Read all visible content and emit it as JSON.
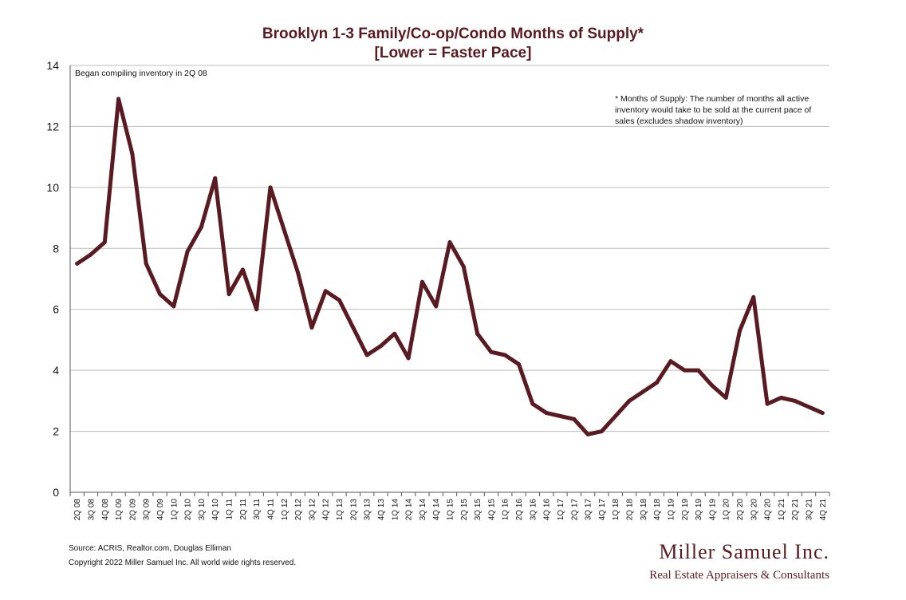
{
  "chart_data": {
    "type": "line",
    "title": "Brooklyn 1-3 Family/Co-op/Condo Months of Supply*",
    "subtitle": "[Lower = Faster Pace]",
    "xlabel": "",
    "ylabel": "",
    "ylim": [
      0,
      14
    ],
    "yticks": [
      "0",
      "2",
      "4",
      "6",
      "8",
      "10",
      "12",
      "14"
    ],
    "grid": true,
    "line_color": "#5a1a22",
    "categories": [
      "2Q 08",
      "3Q 08",
      "4Q 08",
      "1Q 09",
      "2Q 09",
      "3Q 09",
      "4Q 09",
      "1Q 10",
      "2Q 10",
      "3Q 10",
      "4Q 10",
      "1Q 11",
      "2Q 11",
      "3Q 11",
      "4Q 11",
      "1Q 12",
      "2Q 12",
      "3Q 12",
      "4Q 12",
      "1Q 13",
      "2Q 13",
      "3Q 13",
      "4Q 13",
      "1Q 14",
      "2Q 14",
      "3Q 14",
      "4Q 14",
      "1Q 15",
      "2Q 15",
      "3Q 15",
      "4Q 15",
      "1Q 16",
      "2Q 16",
      "3Q 16",
      "4Q 16",
      "1Q 17",
      "2Q 17",
      "3Q 17",
      "4Q 17",
      "1Q 18",
      "2Q 18",
      "3Q 18",
      "4Q 18",
      "1Q 19",
      "2Q 19",
      "3Q 19",
      "4Q 19",
      "1Q 20",
      "2Q 20",
      "3Q 20",
      "4Q 20",
      "1Q 21",
      "2Q 21",
      "3Q 21",
      "4Q 21"
    ],
    "series": [
      {
        "values": [
          7.5,
          7.8,
          8.2,
          12.9,
          11.1,
          7.5,
          6.5,
          6.1,
          7.9,
          8.7,
          10.3,
          6.5,
          7.3,
          6.0,
          10.0,
          8.6,
          7.2,
          5.4,
          6.6,
          6.3,
          5.4,
          4.5,
          4.8,
          5.2,
          4.4,
          6.9,
          6.1,
          8.2,
          7.4,
          5.2,
          4.6,
          4.5,
          4.2,
          2.9,
          2.6,
          2.5,
          2.4,
          1.9,
          2.0,
          2.5,
          3.0,
          3.3,
          3.6,
          4.3,
          4.0,
          4.0,
          3.5,
          3.1,
          5.3,
          6.4,
          2.9,
          3.1,
          3.0,
          2.8,
          2.6
        ]
      }
    ],
    "annotations": {
      "top_left": "Began compiling inventory in 2Q 08",
      "top_right_lines": [
        "* Months of Supply: The number of months all active",
        "inventory would take to be sold at the current pace of",
        "sales (excludes shadow inventory)"
      ]
    }
  },
  "footer": {
    "source": "Source: ACRIS, Realtor.com, Douglas Elliman",
    "copyright": "Copyright 2022 Miller Samuel Inc.  All world wide rights reserved."
  },
  "brand": {
    "name": "Miller Samuel Inc.",
    "tagline": "Real Estate Appraisers & Consultants"
  }
}
